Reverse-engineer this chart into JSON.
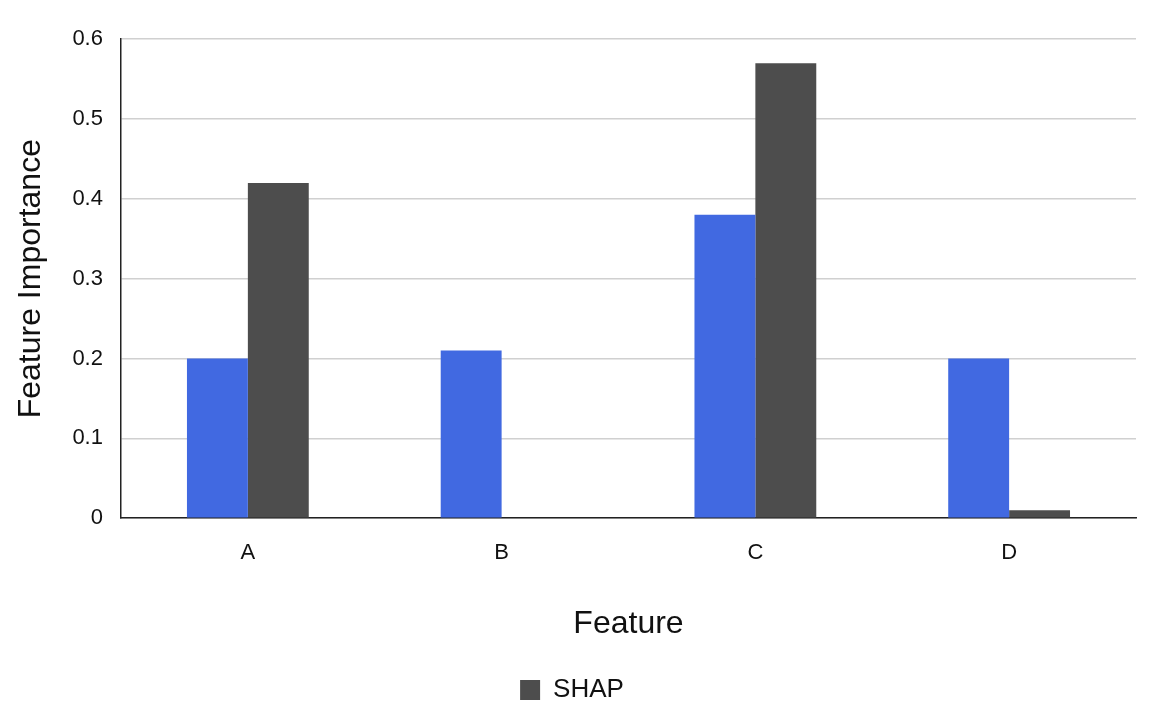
{
  "chart_data": {
    "type": "bar",
    "xlabel": "Feature",
    "ylabel": "Feature Importance",
    "categories": [
      "A",
      "B",
      "C",
      "D"
    ],
    "series": [
      {
        "color": "#4169e1",
        "values": [
          0.2,
          0.21,
          0.38,
          0.2
        ]
      },
      {
        "name": "SHAP",
        "color": "#4d4d4d",
        "values": [
          0.42,
          0,
          0.57,
          0.01
        ]
      }
    ],
    "ylim": [
      0,
      0.6
    ],
    "yticks": [
      0,
      0.1,
      0.2,
      0.3,
      0.4,
      0.5,
      0.6
    ],
    "grid": "y",
    "legend": "bottom"
  }
}
